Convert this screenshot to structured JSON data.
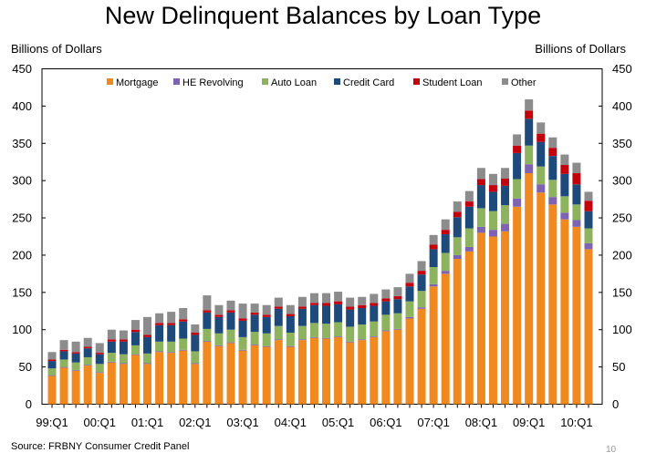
{
  "title": "New Delinquent Balances by Loan Type",
  "source": "Source: FRBNY Consumer Credit Panel",
  "page_number": "10",
  "colors": {
    "Mortgage": "#f0891f",
    "HE Revolving": "#7f63b3",
    "Auto Loan": "#8db35e",
    "Credit Card": "#1e4a7b",
    "Student Loan": "#c4000d",
    "Other": "#8c8c8c"
  },
  "chart_data": {
    "type": "bar",
    "stacked": true,
    "title": "New Delinquent Balances by Loan Type",
    "ylabel": "Billions of Dollars",
    "ylabel_right": "Billions of Dollars",
    "ylim": [
      0,
      450
    ],
    "yticks": [
      0,
      50,
      100,
      150,
      200,
      250,
      300,
      350,
      400,
      450
    ],
    "grid": false,
    "legend_position": "top",
    "x_tick_labels": [
      "99:Q1",
      "00:Q1",
      "01:Q1",
      "02:Q1",
      "03:Q1",
      "04:Q1",
      "05:Q1",
      "06:Q1",
      "07:Q1",
      "08:Q1",
      "09:Q1",
      "10:Q1"
    ],
    "categories": [
      "99:Q1",
      "99:Q2",
      "99:Q3",
      "99:Q4",
      "00:Q1",
      "00:Q2",
      "00:Q3",
      "00:Q4",
      "01:Q1",
      "01:Q2",
      "01:Q3",
      "01:Q4",
      "02:Q1",
      "02:Q2",
      "02:Q3",
      "02:Q4",
      "03:Q1",
      "03:Q2",
      "03:Q3",
      "03:Q4",
      "04:Q1",
      "04:Q2",
      "04:Q3",
      "04:Q4",
      "05:Q1",
      "05:Q2",
      "05:Q3",
      "05:Q4",
      "06:Q1",
      "06:Q2",
      "06:Q3",
      "06:Q4",
      "07:Q1",
      "07:Q2",
      "07:Q3",
      "07:Q4",
      "08:Q1",
      "08:Q2",
      "08:Q3",
      "08:Q4",
      "09:Q1",
      "09:Q2",
      "09:Q3",
      "09:Q4",
      "10:Q1",
      "10:Q2"
    ],
    "series": [
      {
        "name": "Mortgage",
        "values": [
          38,
          49,
          45,
          52,
          42,
          56,
          54,
          66,
          54,
          70,
          69,
          72,
          54,
          84,
          78,
          82,
          72,
          79,
          77,
          86,
          77,
          86,
          89,
          88,
          90,
          83,
          86,
          90,
          98,
          100,
          115,
          128,
          158,
          175,
          195,
          205,
          230,
          225,
          232,
          265,
          310,
          284,
          268,
          248,
          238,
          208
        ]
      },
      {
        "name": "HE Revolving",
        "values": [
          1,
          1,
          1,
          1,
          1,
          1,
          1,
          1,
          1,
          1,
          1,
          1,
          1,
          1,
          1,
          1,
          1,
          1,
          1,
          1,
          1,
          1,
          1,
          1,
          1,
          1,
          1,
          1,
          1,
          1,
          2,
          2,
          3,
          4,
          5,
          6,
          8,
          9,
          10,
          11,
          12,
          11,
          10,
          9,
          9,
          8
        ]
      },
      {
        "name": "Auto Loan",
        "values": [
          9,
          10,
          10,
          10,
          11,
          12,
          12,
          12,
          13,
          13,
          14,
          15,
          16,
          16,
          16,
          17,
          17,
          17,
          17,
          18,
          18,
          18,
          19,
          19,
          19,
          20,
          20,
          20,
          21,
          21,
          21,
          22,
          23,
          24,
          24,
          25,
          25,
          25,
          25,
          26,
          25,
          24,
          23,
          22,
          21,
          20
        ]
      },
      {
        "name": "Credit Card",
        "values": [
          10,
          11,
          12,
          12,
          13,
          15,
          17,
          18,
          22,
          22,
          22,
          23,
          22,
          22,
          22,
          23,
          22,
          23,
          22,
          23,
          22,
          23,
          24,
          24,
          24,
          23,
          22,
          21,
          18,
          19,
          20,
          22,
          24,
          25,
          27,
          29,
          31,
          26,
          26,
          35,
          36,
          33,
          32,
          30,
          27,
          23
        ]
      },
      {
        "name": "Student Loan",
        "values": [
          2,
          2,
          2,
          2,
          2,
          3,
          3,
          3,
          3,
          3,
          3,
          3,
          3,
          3,
          3,
          3,
          3,
          3,
          3,
          3,
          3,
          3,
          3,
          4,
          4,
          4,
          4,
          4,
          4,
          4,
          5,
          5,
          6,
          6,
          7,
          7,
          8,
          9,
          10,
          10,
          11,
          11,
          11,
          12,
          15,
          14
        ]
      },
      {
        "name": "Other",
        "values": [
          10,
          13,
          14,
          12,
          13,
          13,
          12,
          13,
          24,
          13,
          15,
          15,
          11,
          20,
          13,
          13,
          20,
          12,
          13,
          12,
          12,
          13,
          13,
          13,
          13,
          12,
          11,
          12,
          12,
          12,
          12,
          13,
          13,
          14,
          14,
          14,
          15,
          15,
          14,
          15,
          15,
          15,
          14,
          14,
          14,
          12
        ]
      }
    ]
  }
}
